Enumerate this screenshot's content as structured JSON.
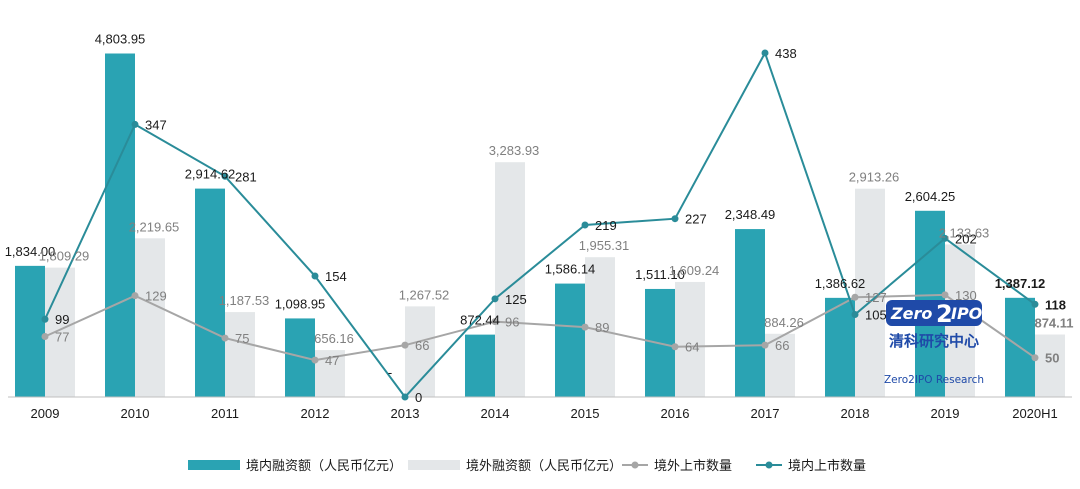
{
  "chart_data": {
    "type": "bar",
    "categories": [
      "2009",
      "2010",
      "2011",
      "2012",
      "2013",
      "2014",
      "2015",
      "2016",
      "2017",
      "2018",
      "2019",
      "2020H1"
    ],
    "series": [
      {
        "name": "境内融资额（人民币亿元）",
        "kind": "bar",
        "color": "#2aa3b3",
        "values": [
          1834.0,
          4803.95,
          2914.62,
          1098.95,
          0,
          872.44,
          1586.14,
          1511.1,
          2348.49,
          1386.62,
          2604.25,
          1387.12
        ],
        "labels": [
          "1,834.00",
          "4,803.95",
          "2,914.62",
          "1,098.95",
          "-",
          "872.44",
          "1,586.14",
          "1,511.10",
          "2,348.49",
          "1,386.62",
          "2,604.25",
          "1,387.12"
        ]
      },
      {
        "name": "境外融资额（人民币亿元）",
        "kind": "bar",
        "color": "#e4e7e9",
        "values": [
          1809.29,
          2219.65,
          1187.53,
          656.16,
          1267.52,
          3283.93,
          1955.31,
          1609.24,
          884.26,
          2913.26,
          2133.63,
          874.11
        ],
        "labels": [
          "1,809.29",
          "2,219.65",
          "1,187.53",
          "656.16",
          "1,267.52",
          "3,283.93",
          "1,955.31",
          "1,609.24",
          "884.26",
          "2,913.26",
          "2,133.63",
          "874.11"
        ]
      },
      {
        "name": "境外上市数量",
        "kind": "line",
        "color": "#a6a6a6",
        "values": [
          77,
          129,
          75,
          47,
          66,
          96,
          89,
          64,
          66,
          127,
          130,
          50
        ]
      },
      {
        "name": "境内上市数量",
        "kind": "line",
        "color": "#2a8c99",
        "values": [
          99,
          347,
          281,
          154,
          0,
          125,
          219,
          227,
          438,
          105,
          202,
          118
        ]
      }
    ],
    "bar_ylim": [
      0,
      5000
    ],
    "line_ylim": [
      0,
      450
    ],
    "grid": false,
    "legend": "bottom"
  },
  "logo": {
    "brand": "Zero2IPO",
    "brand_left": "Zero",
    "brand_mid": "2",
    "brand_right": "IPO",
    "cn_name": "清科研究中心",
    "en_name": "Zero2IPO Research",
    "color": "#1f4aa8"
  }
}
